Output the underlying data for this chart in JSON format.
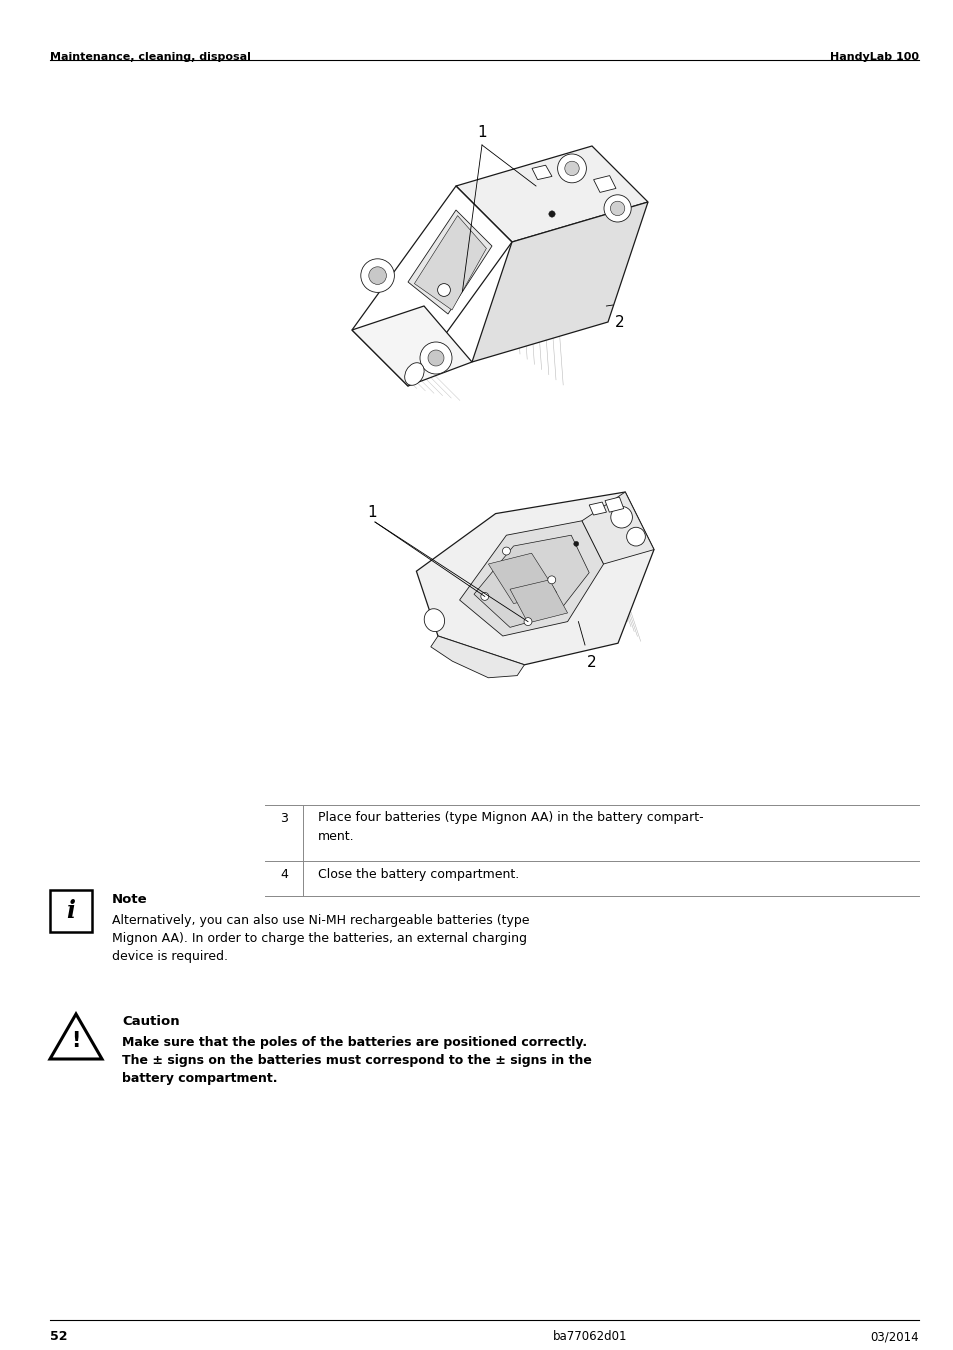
{
  "page_number": "52",
  "doc_ref": "ba77062d01",
  "doc_date": "03/2014",
  "header_left": "Maintenance, cleaning, disposal",
  "header_right": "HandyLab 100",
  "step3_num": "3",
  "step3_text_line1": "Place four batteries (type Mignon AA) in the battery compart-",
  "step3_text_line2": "ment.",
  "step4_num": "4",
  "step4_text": "Close the battery compartment.",
  "note_title": "Note",
  "note_line1": "Alternatively, you can also use Ni-MH rechargeable batteries (type",
  "note_line2": "Mignon AA). In order to charge the batteries, an external charging",
  "note_line3": "device is required.",
  "caution_title": "Caution",
  "caution_line1": "Make sure that the poles of the batteries are positioned correctly.",
  "caution_line2": "The ± signs on the batteries must correspond to the ± signs in the",
  "caution_line3": "battery compartment.",
  "bg_color": "#ffffff",
  "text_color": "#000000",
  "page_width": 9.54,
  "page_height": 13.5
}
